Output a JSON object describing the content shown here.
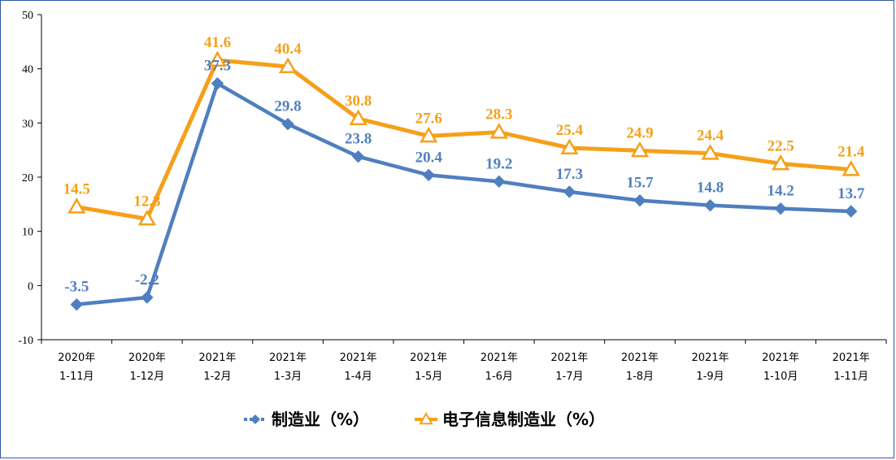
{
  "chart_data": {
    "type": "line",
    "categories": [
      [
        "2020年",
        "1-11月"
      ],
      [
        "2020年",
        "1-12月"
      ],
      [
        "2021年",
        "1-2月"
      ],
      [
        "2021年",
        "1-3月"
      ],
      [
        "2021年",
        "1-4月"
      ],
      [
        "2021年",
        "1-5月"
      ],
      [
        "2021年",
        "1-6月"
      ],
      [
        "2021年",
        "1-7月"
      ],
      [
        "2021年",
        "1-8月"
      ],
      [
        "2021年",
        "1-9月"
      ],
      [
        "2021年",
        "1-10月"
      ],
      [
        "2021年",
        "1-11月"
      ]
    ],
    "series": [
      {
        "name": "制造业（%）",
        "color": "#4f7fbf",
        "marker": "diamond",
        "values": [
          -3.5,
          -2.2,
          37.3,
          29.8,
          23.8,
          20.4,
          19.2,
          17.3,
          15.7,
          14.8,
          14.2,
          13.7
        ],
        "labels": [
          "-3.5",
          "-2.2",
          "37.3",
          "29.8",
          "23.8",
          "20.4",
          "19.2",
          "17.3",
          "15.7",
          "14.8",
          "14.2",
          "13.7"
        ]
      },
      {
        "name": "电子信息制造业（%）",
        "color": "#f5a01a",
        "marker": "triangle",
        "values": [
          14.5,
          12.3,
          41.6,
          40.4,
          30.8,
          27.6,
          28.3,
          25.4,
          24.9,
          24.4,
          22.5,
          21.4
        ],
        "labels": [
          "14.5",
          "12.3",
          "41.6",
          "40.4",
          "30.8",
          "27.6",
          "28.3",
          "25.4",
          "24.9",
          "24.4",
          "22.5",
          "21.4"
        ]
      }
    ],
    "ylim": [
      -10,
      50
    ],
    "yticks": [
      -10,
      0,
      10,
      20,
      30,
      40,
      50
    ],
    "ytick_labels": [
      "-10",
      "0",
      "10",
      "20",
      "30",
      "40",
      "50"
    ],
    "grid": false,
    "legend": "bottom-center"
  }
}
